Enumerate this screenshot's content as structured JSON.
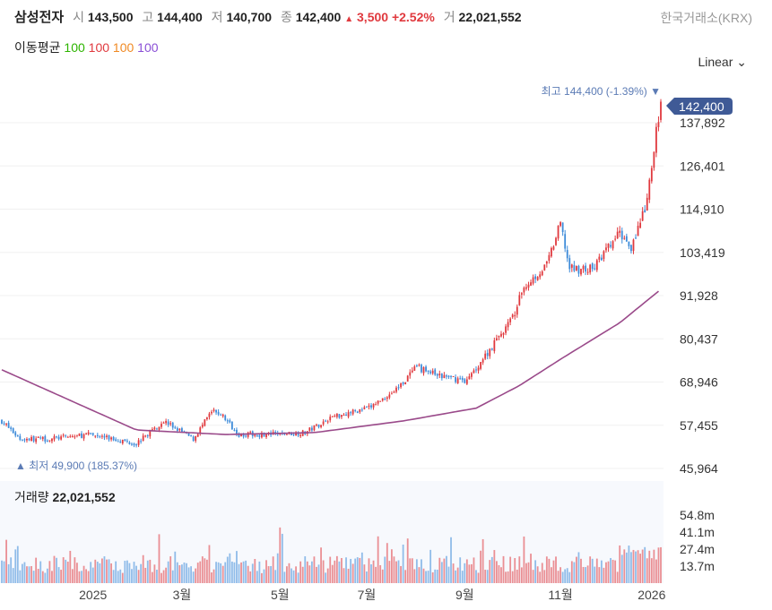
{
  "header": {
    "name": "삼성전자",
    "open_label": "시",
    "open": "143,500",
    "high_label": "고",
    "high": "144,400",
    "low_label": "저",
    "low": "140,700",
    "close_label": "종",
    "close": "142,400",
    "change": "3,500",
    "change_pct": "+2.52%",
    "volume_label": "거",
    "volume": "22,021,552",
    "exchange": "한국거래소(KRX)"
  },
  "ma_legend": {
    "label": "이동평균",
    "values": [
      "100",
      "100",
      "100",
      "100"
    ],
    "colors": [
      "#2db400",
      "#e0393e",
      "#f08a24",
      "#8a4fd6"
    ]
  },
  "scale_menu": {
    "label": "Linear"
  },
  "colors": {
    "up": "#e0393e",
    "down": "#3d8bd9",
    "ma": "#9a4a8a",
    "tag": "#3f5a96"
  },
  "chart_data": {
    "type": "candlestick",
    "y_ticks": [
      "137,892",
      "126,401",
      "114,910",
      "103,419",
      "91,928",
      "80,437",
      "68,946",
      "57,455",
      "45,964"
    ],
    "y_tick_values": [
      137892,
      126401,
      114910,
      103419,
      91928,
      80437,
      68946,
      57455,
      45964
    ],
    "ylim": [
      45964,
      150000
    ],
    "x_ticks": [
      {
        "label": "2025",
        "t": 40
      },
      {
        "label": "3월",
        "t": 79
      },
      {
        "label": "5월",
        "t": 122
      },
      {
        "label": "7월",
        "t": 160
      },
      {
        "label": "9월",
        "t": 203
      },
      {
        "label": "11월",
        "t": 245
      },
      {
        "label": "2026",
        "t": 285
      }
    ],
    "t_range": [
      0,
      289
    ],
    "close_keypoints": [
      [
        0,
        58600
      ],
      [
        8,
        53800
      ],
      [
        20,
        53800
      ],
      [
        39,
        55000
      ],
      [
        59,
        52600
      ],
      [
        71,
        58600
      ],
      [
        84,
        53800
      ],
      [
        92,
        61000
      ],
      [
        96,
        60500
      ],
      [
        104,
        55000
      ],
      [
        118,
        55000
      ],
      [
        133,
        55500
      ],
      [
        145,
        59800
      ],
      [
        161,
        62000
      ],
      [
        173,
        67000
      ],
      [
        182,
        72900
      ],
      [
        192,
        70500
      ],
      [
        204,
        69300
      ],
      [
        214,
        77600
      ],
      [
        224,
        86000
      ],
      [
        229,
        94300
      ],
      [
        239,
        100000
      ],
      [
        245,
        111000
      ],
      [
        249,
        99000
      ],
      [
        259,
        99000
      ],
      [
        271,
        108600
      ],
      [
        276,
        105000
      ],
      [
        282,
        114600
      ],
      [
        285,
        125000
      ],
      [
        287,
        136000
      ],
      [
        289,
        142400
      ]
    ],
    "ma_keypoints": [
      [
        0,
        72200
      ],
      [
        59,
        56200
      ],
      [
        98,
        55000
      ],
      [
        137,
        55500
      ],
      [
        176,
        58600
      ],
      [
        208,
        62000
      ],
      [
        227,
        68000
      ],
      [
        245,
        75000
      ],
      [
        271,
        84700
      ],
      [
        289,
        93600
      ]
    ],
    "last_price": "142,400",
    "max_label": "최고",
    "max_value": "144,400 (-1.39%)",
    "min_label": "최저",
    "min_value": "49,900 (185.37%)",
    "volume": {
      "title": "거래량",
      "value": "22,021,552",
      "ticks": [
        "54.8m",
        "41.1m",
        "27.4m",
        "13.7m"
      ],
      "tick_values": [
        54.8,
        41.1,
        27.4,
        13.7
      ]
    }
  }
}
